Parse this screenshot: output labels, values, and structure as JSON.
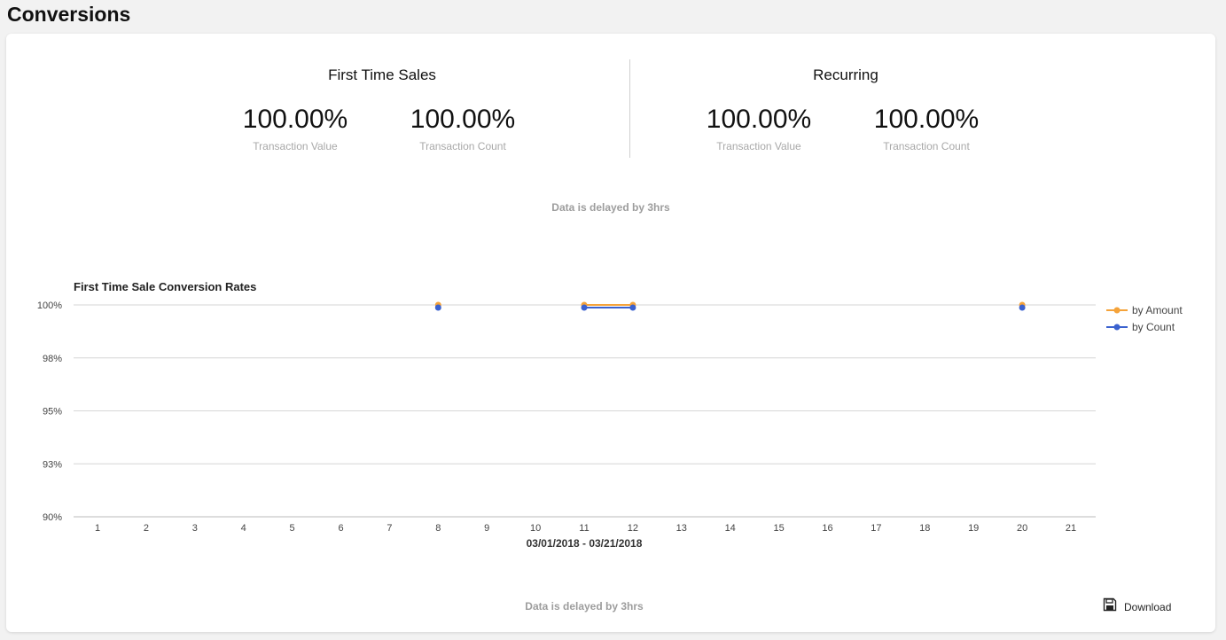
{
  "page": {
    "title": "Conversions"
  },
  "summary": {
    "first_time": {
      "title": "First Time Sales",
      "metrics": [
        {
          "value": "100.00%",
          "label": "Transaction Value"
        },
        {
          "value": "100.00%",
          "label": "Transaction Count"
        }
      ]
    },
    "recurring": {
      "title": "Recurring",
      "metrics": [
        {
          "value": "100.00%",
          "label": "Transaction Value"
        },
        {
          "value": "100.00%",
          "label": "Transaction Count"
        }
      ]
    },
    "delay_note": "Data is delayed by 3hrs"
  },
  "chart_data": {
    "type": "line",
    "title": "First Time Sale Conversion Rates",
    "xlabel": "03/01/2018 - 03/21/2018",
    "ylabel": "",
    "x": [
      1,
      2,
      3,
      4,
      5,
      6,
      7,
      8,
      9,
      10,
      11,
      12,
      13,
      14,
      15,
      16,
      17,
      18,
      19,
      20,
      21
    ],
    "ylim": [
      90,
      100
    ],
    "y_ticks": [
      "100%",
      "98%",
      "95%",
      "93%",
      "90%"
    ],
    "y_tick_values": [
      100,
      97.5,
      95,
      92.5,
      90
    ],
    "grid": true,
    "legend_position": "right",
    "series": [
      {
        "name": "by Amount",
        "color": "#f5a33a",
        "points": [
          {
            "x": 8,
            "y": 100
          },
          {
            "x": 11,
            "y": 100
          },
          {
            "x": 12,
            "y": 100
          },
          {
            "x": 20,
            "y": 100
          }
        ],
        "segments": [
          [
            11,
            12
          ]
        ]
      },
      {
        "name": "by Count",
        "color": "#3b62cf",
        "points": [
          {
            "x": 8,
            "y": 100
          },
          {
            "x": 11,
            "y": 100
          },
          {
            "x": 12,
            "y": 100
          },
          {
            "x": 20,
            "y": 100
          }
        ],
        "segments": [
          [
            11,
            12
          ]
        ]
      }
    ]
  },
  "footer": {
    "delay_note": "Data is delayed by 3hrs",
    "download_label": "Download",
    "download_icon": "save-icon"
  }
}
